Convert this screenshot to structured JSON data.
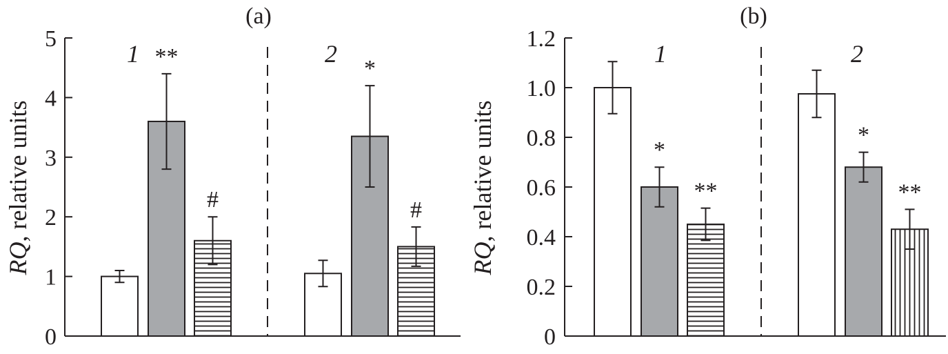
{
  "chart_data": [
    {
      "type": "bar",
      "title": "(a)",
      "ylabel_italic": "RQ",
      "ylabel_rest": ", relative units",
      "ylim": [
        0,
        5
      ],
      "yticks": [
        "0",
        "1",
        "2",
        "3",
        "4",
        "5"
      ],
      "grid": false,
      "groups": [
        {
          "label": "1",
          "bars": [
            {
              "value": 1.0,
              "error": 0.1,
              "fill": "white",
              "annotation": ""
            },
            {
              "value": 3.6,
              "error": 0.8,
              "fill": "gray",
              "annotation": "**"
            },
            {
              "value": 1.6,
              "error": 0.4,
              "fill": "horizontal-stripes",
              "annotation": "#"
            }
          ]
        },
        {
          "label": "2",
          "bars": [
            {
              "value": 1.05,
              "error": 0.22,
              "fill": "white",
              "annotation": ""
            },
            {
              "value": 3.35,
              "error": 0.85,
              "fill": "gray",
              "annotation": "*"
            },
            {
              "value": 1.5,
              "error": 0.33,
              "fill": "horizontal-stripes",
              "annotation": "#"
            }
          ]
        }
      ]
    },
    {
      "type": "bar",
      "title": "(b)",
      "ylabel_italic": "RQ",
      "ylabel_rest": ", relative units",
      "ylim": [
        0,
        1.2
      ],
      "yticks": [
        "0",
        "0.2",
        "0.4",
        "0.6",
        "0.8",
        "1.0",
        "1.2"
      ],
      "grid": false,
      "groups": [
        {
          "label": "1",
          "bars": [
            {
              "value": 1.0,
              "error": 0.105,
              "fill": "white",
              "annotation": ""
            },
            {
              "value": 0.6,
              "error": 0.08,
              "fill": "gray",
              "annotation": "*"
            },
            {
              "value": 0.45,
              "error": 0.065,
              "fill": "horizontal-stripes",
              "annotation": "**"
            }
          ]
        },
        {
          "label": "2",
          "bars": [
            {
              "value": 0.975,
              "error": 0.095,
              "fill": "white",
              "annotation": ""
            },
            {
              "value": 0.68,
              "error": 0.06,
              "fill": "gray",
              "annotation": "*"
            },
            {
              "value": 0.43,
              "error": 0.08,
              "fill": "vertical-stripes",
              "annotation": "**"
            }
          ]
        }
      ]
    }
  ],
  "colors": {
    "ink": "#231f20",
    "bar_gray": "#a7a9ac",
    "bar_white": "#ffffff",
    "background": "#ffffff"
  }
}
